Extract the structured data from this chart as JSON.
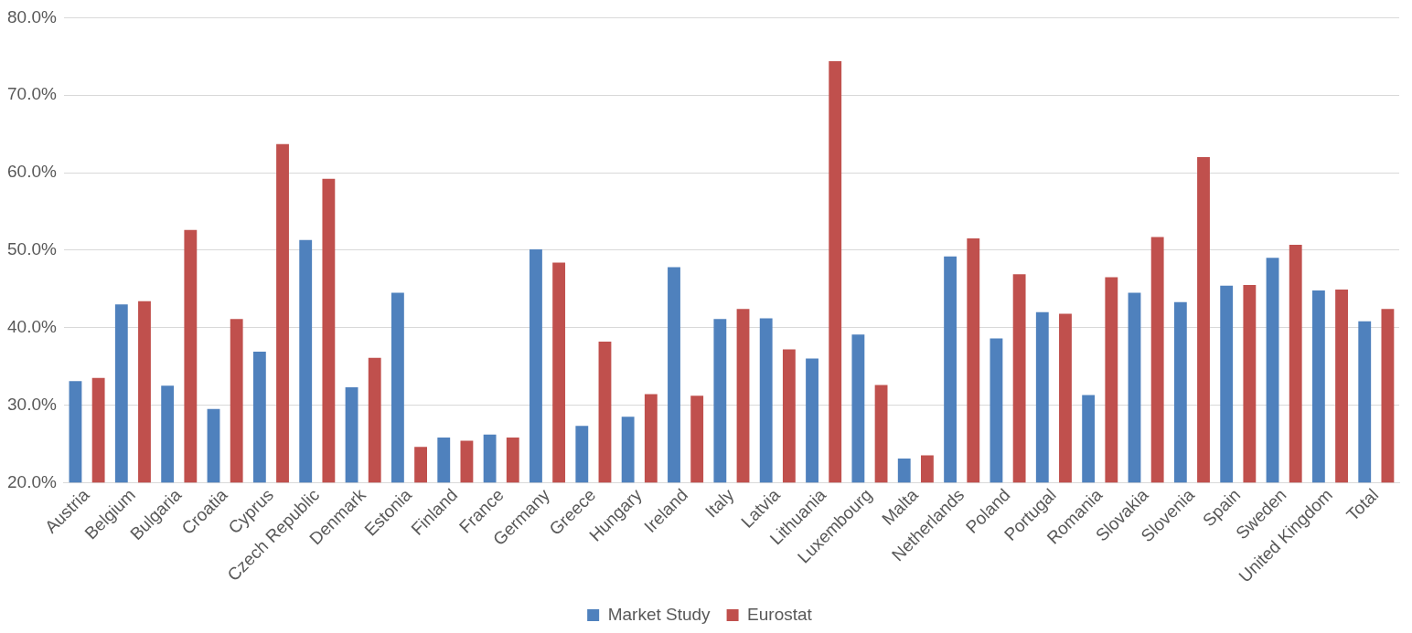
{
  "chart_data": {
    "type": "bar",
    "categories": [
      "Austria",
      "Belgium",
      "Bulgaria",
      "Croatia",
      "Cyprus",
      "Czech Republic",
      "Denmark",
      "Estonia",
      "Finland",
      "France",
      "Germany",
      "Greece",
      "Hungary",
      "Ireland",
      "Italy",
      "Latvia",
      "Lithuania",
      "Luxembourg",
      "Malta",
      "Netherlands",
      "Poland",
      "Portugal",
      "Romania",
      "Slovakia",
      "Slovenia",
      "Spain",
      "Sweden",
      "United Kingdom",
      "Total"
    ],
    "series": [
      {
        "name": "Market Study",
        "color": "#4f81bd",
        "values": [
          33.1,
          43.0,
          32.5,
          29.5,
          36.9,
          51.3,
          32.3,
          44.5,
          25.8,
          26.2,
          50.1,
          27.3,
          28.5,
          47.8,
          41.1,
          41.2,
          36.0,
          39.1,
          23.1,
          49.2,
          38.6,
          42.0,
          31.3,
          44.5,
          43.3,
          45.4,
          49.0,
          44.8,
          40.8
        ]
      },
      {
        "name": "Eurostat",
        "color": "#c0504d",
        "values": [
          33.5,
          43.4,
          52.6,
          41.1,
          63.7,
          59.2,
          36.1,
          24.6,
          25.4,
          25.8,
          48.4,
          38.2,
          31.4,
          31.2,
          42.4,
          37.2,
          74.4,
          32.6,
          23.5,
          51.5,
          46.9,
          41.8,
          46.5,
          51.7,
          62.0,
          45.5,
          50.7,
          44.9,
          42.4
        ]
      }
    ],
    "ylim": [
      20,
      80
    ],
    "yticks": [
      {
        "value": 20,
        "label": "20.0%"
      },
      {
        "value": 30,
        "label": "30.0%"
      },
      {
        "value": 40,
        "label": "40.0%"
      },
      {
        "value": 50,
        "label": "50.0%"
      },
      {
        "value": 60,
        "label": "60.0%"
      },
      {
        "value": 70,
        "label": "70.0%"
      },
      {
        "value": 80,
        "label": "80.0%"
      }
    ],
    "grid": "y",
    "legend": "bottom"
  }
}
